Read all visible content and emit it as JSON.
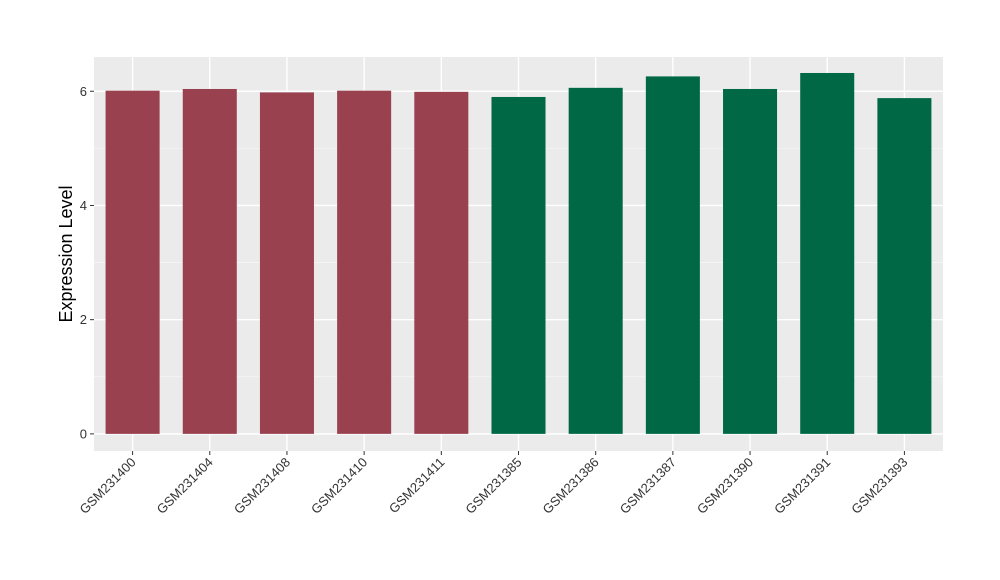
{
  "chart_data": {
    "type": "bar",
    "title": "",
    "xlabel": "",
    "ylabel": "Expression Level",
    "ylim": [
      -0.3,
      6.6
    ],
    "yticks": [
      0,
      2,
      4,
      6
    ],
    "grid": true,
    "panel_background": "#EBEBEB",
    "categories": [
      "GSM231400",
      "GSM231404",
      "GSM231408",
      "GSM231410",
      "GSM231411",
      "GSM231385",
      "GSM231386",
      "GSM231387",
      "GSM231390",
      "GSM231391",
      "GSM231393"
    ],
    "values": [
      6.01,
      6.04,
      5.98,
      6.01,
      5.99,
      5.9,
      6.06,
      6.26,
      6.04,
      6.32,
      5.88
    ],
    "colors": [
      "#99414F",
      "#99414F",
      "#99414F",
      "#99414F",
      "#99414F",
      "#006845",
      "#006845",
      "#006845",
      "#006845",
      "#006845",
      "#006845"
    ]
  }
}
